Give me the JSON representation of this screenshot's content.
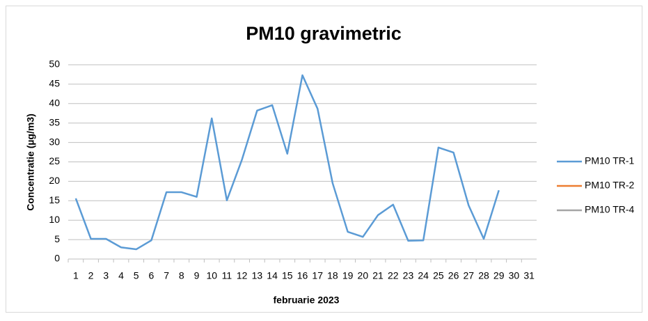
{
  "chart_data": {
    "type": "line",
    "title": "PM10 gravimetric",
    "x_label": "februarie 2023",
    "y_label": "Concentratie (µg/m3)",
    "categories": [
      "1",
      "2",
      "3",
      "4",
      "5",
      "6",
      "7",
      "8",
      "9",
      "10",
      "11",
      "12",
      "13",
      "14",
      "15",
      "16",
      "17",
      "18",
      "19",
      "20",
      "21",
      "22",
      "23",
      "24",
      "25",
      "26",
      "27",
      "28",
      "29",
      "30",
      "31"
    ],
    "series": [
      {
        "name": "PM10 TR-1",
        "color": "#5b9bd5",
        "values": [
          15.6,
          5.2,
          5.2,
          3.0,
          2.5,
          4.8,
          17.2,
          17.2,
          16.0,
          36.2,
          15.1,
          25.6,
          38.2,
          39.6,
          27.1,
          47.3,
          38.7,
          19.5,
          7.0,
          5.7,
          11.3,
          14.0,
          4.7,
          4.8,
          28.7,
          27.4,
          13.8,
          5.2,
          17.7,
          null,
          null
        ]
      },
      {
        "name": "PM10 TR-2",
        "color": "#ed7d31",
        "values": [
          null,
          null,
          null,
          null,
          null,
          null,
          null,
          null,
          null,
          null,
          null,
          null,
          null,
          null,
          null,
          null,
          null,
          null,
          null,
          null,
          null,
          null,
          null,
          null,
          null,
          null,
          null,
          null,
          null,
          null,
          null
        ]
      },
      {
        "name": "PM10 TR-4",
        "color": "#a5a5a5",
        "values": [
          null,
          null,
          null,
          null,
          null,
          null,
          null,
          null,
          null,
          null,
          null,
          null,
          null,
          null,
          null,
          null,
          null,
          null,
          null,
          null,
          null,
          null,
          null,
          null,
          null,
          null,
          null,
          null,
          null,
          null,
          null
        ]
      }
    ],
    "ylim": [
      0,
      50
    ],
    "yticks": [
      0,
      5,
      10,
      15,
      20,
      25,
      30,
      35,
      40,
      45,
      50
    ],
    "grid": true,
    "legend": "right"
  }
}
